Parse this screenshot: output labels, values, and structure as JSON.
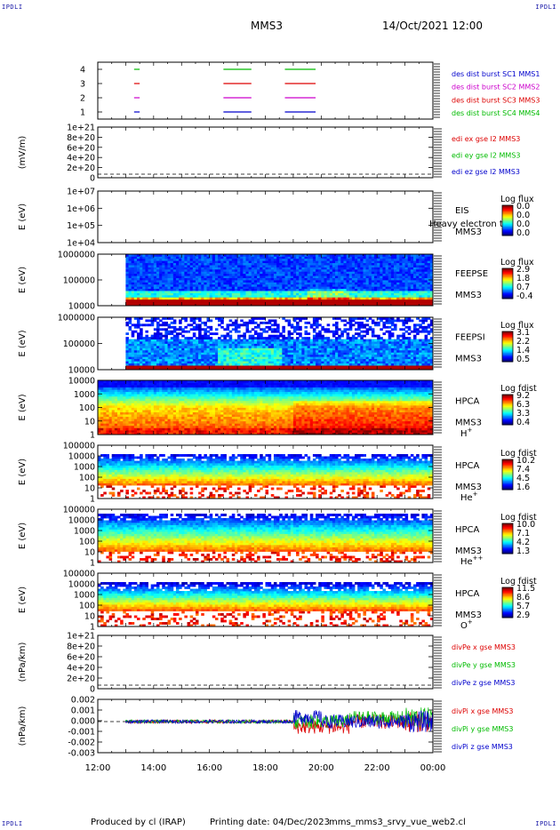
{
  "corner_label": "IPDLI",
  "header": {
    "mission": "MMS3",
    "date": "14/Oct/2021 12:00"
  },
  "footer": {
    "produced_by": "Produced by cl (IRAP)",
    "printing_date": "Printing date: 04/Dec/2023",
    "filename": "mms_mms3_srvy_vue_web2.cl"
  },
  "time_axis": {
    "ticks": [
      "12:00",
      "14:00",
      "16:00",
      "18:00",
      "20:00",
      "22:00",
      "00:00"
    ],
    "range_hours": [
      12,
      24
    ]
  },
  "colors": {
    "red": "#dd0000",
    "green": "#00bb00",
    "blue": "#0000cc",
    "magenta": "#cc00cc"
  },
  "chart_data": [
    {
      "type": "line",
      "panel": "burst",
      "ylim": [
        0.5,
        4.5
      ],
      "yticks": [
        "1",
        "2",
        "3",
        "4"
      ],
      "legend": [
        {
          "label": "des dist burst SC1 MMS1",
          "color": "#0000cc"
        },
        {
          "label": "des dist burst SC2 MMS2",
          "color": "#cc00cc"
        },
        {
          "label": "des dist burst SC3 MMS3",
          "color": "#dd0000"
        },
        {
          "label": "des dist burst SC4 MMS4",
          "color": "#00bb00"
        }
      ],
      "series": [
        {
          "level": 4,
          "color": "#00bb00",
          "segments": [
            [
              13.3,
              13.5
            ],
            [
              16.5,
              17.5
            ],
            [
              18.7,
              19.8
            ]
          ]
        },
        {
          "level": 3,
          "color": "#dd0000",
          "segments": [
            [
              13.3,
              13.5
            ],
            [
              16.5,
              17.5
            ],
            [
              18.7,
              19.8
            ]
          ]
        },
        {
          "level": 2,
          "color": "#cc00cc",
          "segments": [
            [
              13.3,
              13.5
            ],
            [
              16.5,
              17.5
            ],
            [
              18.7,
              19.8
            ]
          ]
        },
        {
          "level": 1,
          "color": "#0000cc",
          "segments": [
            [
              13.3,
              13.5
            ],
            [
              16.5,
              17.5
            ],
            [
              18.7,
              19.8
            ]
          ]
        }
      ]
    },
    {
      "type": "line",
      "panel": "edi",
      "ylabel": "(mV/m)",
      "yticks": [
        "0",
        "2e+20",
        "4e+20",
        "6e+20",
        "8e+20",
        "1e+21"
      ],
      "legend": [
        {
          "label": "edi ex gse l2 MMS3",
          "color": "#dd0000"
        },
        {
          "label": "edi ey gse l2 MMS3",
          "color": "#00bb00"
        },
        {
          "label": "edi ez gse l2 MMS3",
          "color": "#0000cc"
        }
      ]
    },
    {
      "type": "heatmap",
      "panel": "eis",
      "ylabel": "E (eV)",
      "yticks": [
        "1e+04",
        "1e+05",
        "1e+06",
        "1e+07"
      ],
      "labels": [
        "EIS",
        "MMS3"
      ],
      "overlay": "Heavy electron to",
      "colorbar": {
        "title": "Log flux",
        "ticks": [
          "0.0",
          "0.0",
          "0.0",
          "0.0"
        ]
      }
    },
    {
      "type": "heatmap",
      "panel": "feepse",
      "ylabel": "E (eV)",
      "yticks": [
        "10000",
        "100000",
        "1000000"
      ],
      "labels": [
        "FEEPSE",
        "MMS3"
      ],
      "colorbar": {
        "title": "Log flux",
        "ticks": [
          "2.9",
          "1.8",
          "0.7",
          "-0.4"
        ]
      }
    },
    {
      "type": "heatmap",
      "panel": "feepsi",
      "ylabel": "E (eV)",
      "yticks": [
        "10000",
        "100000",
        "1000000"
      ],
      "labels": [
        "FEEPSI",
        "MMS3"
      ],
      "colorbar": {
        "title": "Log flux",
        "ticks": [
          "3.1",
          "2.2",
          "1.4",
          "0.5"
        ]
      }
    },
    {
      "type": "heatmap",
      "panel": "hpca_h",
      "ylabel": "E (eV)",
      "yticks": [
        "1",
        "10",
        "100",
        "1000",
        "10000"
      ],
      "labels": [
        "HPCA",
        "MMS3"
      ],
      "species": "H",
      "species_sup": "+",
      "colorbar": {
        "title": "Log fdist",
        "ticks": [
          "9.2",
          "6.3",
          "3.3",
          "0.4"
        ]
      }
    },
    {
      "type": "heatmap",
      "panel": "hpca_he",
      "ylabel": "E (eV)",
      "yticks": [
        "1",
        "10",
        "100",
        "1000",
        "10000",
        "100000"
      ],
      "labels": [
        "HPCA",
        "MMS3"
      ],
      "species": "He",
      "species_sup": "+",
      "colorbar": {
        "title": "Log fdist",
        "ticks": [
          "10.2",
          "7.4",
          "4.5",
          "1.6"
        ]
      }
    },
    {
      "type": "heatmap",
      "panel": "hpca_hepp",
      "ylabel": "E (eV)",
      "yticks": [
        "1",
        "10",
        "100",
        "1000",
        "10000",
        "100000"
      ],
      "labels": [
        "HPCA",
        "MMS3"
      ],
      "species": "He",
      "species_sup": "++",
      "colorbar": {
        "title": "Log fdist",
        "ticks": [
          "10.0",
          "7.1",
          "4.2",
          "1.3"
        ]
      }
    },
    {
      "type": "heatmap",
      "panel": "hpca_o",
      "ylabel": "E (eV)",
      "yticks": [
        "1",
        "10",
        "100",
        "1000",
        "10000",
        "100000"
      ],
      "labels": [
        "HPCA",
        "MMS3"
      ],
      "species": "O",
      "species_sup": "+",
      "colorbar": {
        "title": "Log fdist",
        "ticks": [
          "11.5",
          "8.6",
          "5.7",
          "2.9"
        ]
      }
    },
    {
      "type": "line",
      "panel": "divpe",
      "ylabel": "(nPa/km)",
      "yticks": [
        "0",
        "2e+20",
        "4e+20",
        "6e+20",
        "8e+20",
        "1e+21"
      ],
      "legend": [
        {
          "label": "divPe x gse MMS3",
          "color": "#dd0000"
        },
        {
          "label": "divPe y gse MMS3",
          "color": "#00bb00"
        },
        {
          "label": "divPe z gse MMS3",
          "color": "#0000cc"
        }
      ]
    },
    {
      "type": "line",
      "panel": "divpi",
      "ylabel": "(nPa/km)",
      "ylim": [
        -0.0035,
        0.0025
      ],
      "yticks": [
        "-0.003",
        "-0.002",
        "-0.001",
        "0.000",
        "0.001",
        "0.002"
      ],
      "legend": [
        {
          "label": "divPi x gse MMS3",
          "color": "#dd0000"
        },
        {
          "label": "divPi y gse MMS3",
          "color": "#00bb00"
        },
        {
          "label": "divPi z gse MMS3",
          "color": "#0000cc"
        }
      ]
    }
  ]
}
